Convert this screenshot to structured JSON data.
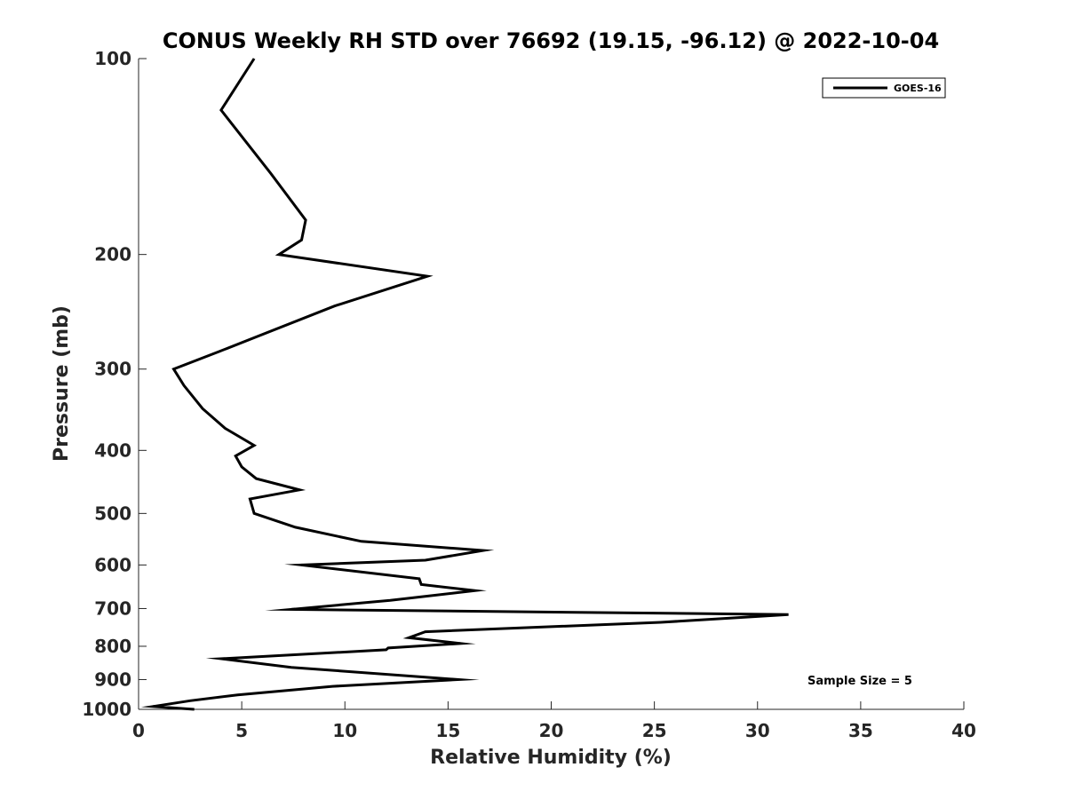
{
  "chart_data": {
    "type": "line",
    "title": "CONUS Weekly RH STD over 76692 (19.15, -96.12) @ 2022-10-04",
    "xlabel": "Relative Humidity (%)",
    "ylabel": "Pressure (mb)",
    "xlim": [
      0,
      40
    ],
    "ylim": [
      100,
      1000
    ],
    "y_scale": "log",
    "y_reversed": true,
    "x_ticks": [
      "0",
      "5",
      "10",
      "15",
      "20",
      "25",
      "30",
      "35",
      "40"
    ],
    "y_ticks": [
      "100",
      "200",
      "300",
      "400",
      "500",
      "600",
      "700",
      "800",
      "900",
      "1000"
    ],
    "grid": false,
    "legend_position": "top-right",
    "annotation": "Sample Size = 5",
    "series": [
      {
        "name": "GOES-16",
        "color": "#000000",
        "x": [
          5.6,
          4.0,
          6.4,
          8.1,
          7.9,
          6.8,
          14.0,
          9.5,
          3.9,
          1.7,
          2.2,
          3.1,
          4.2,
          5.6,
          4.7,
          5.0,
          5.7,
          7.8,
          5.4,
          5.6,
          7.6,
          10.8,
          16.7,
          13.9,
          7.9,
          13.6,
          13.7,
          16.3,
          12.2,
          7.4,
          31.5,
          25.3,
          13.9,
          13.1,
          15.6,
          12.1,
          12.0,
          4.0,
          7.4,
          15.5,
          9.4,
          4.8,
          2.5,
          0.7,
          2.7
        ],
        "y": [
          100,
          120,
          150,
          177,
          190,
          200,
          216,
          240,
          282,
          300,
          318,
          345,
          370,
          393,
          408,
          424,
          442,
          460,
          475,
          500,
          525,
          552,
          570,
          590,
          600,
          630,
          643,
          657,
          680,
          702,
          715,
          735,
          760,
          776,
          792,
          805,
          810,
          836,
          862,
          900,
          922,
          950,
          970,
          990,
          1000
        ]
      }
    ]
  }
}
